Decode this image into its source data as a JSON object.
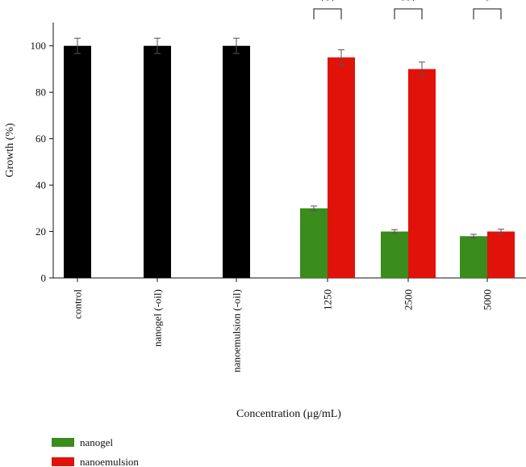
{
  "chart_data": {
    "type": "bar",
    "xlabel": "Concentration (μg/mL)",
    "ylabel": "Growth (%)",
    "ylim": [
      0,
      110
    ],
    "yticks": [
      0,
      20,
      40,
      60,
      80,
      100
    ],
    "categories": [
      "control",
      "nanogel (-oil)",
      "nanoemulsion (-oil)",
      "1250",
      "2500",
      "5000"
    ],
    "control_series": {
      "color": "#000000",
      "values": [
        100,
        100,
        100,
        null,
        null,
        null
      ],
      "errors": [
        3.3,
        3.3,
        3.3,
        null,
        null,
        null
      ]
    },
    "series": [
      {
        "name": "nanogel",
        "color": "#3a8c1c",
        "values": [
          null,
          null,
          null,
          30,
          20,
          18
        ],
        "errors": [
          null,
          null,
          null,
          1.0,
          0.8,
          0.8
        ]
      },
      {
        "name": "nanoemulsion",
        "color": "#e0120a",
        "values": [
          null,
          null,
          null,
          95,
          90,
          20
        ],
        "errors": [
          null,
          null,
          null,
          3.3,
          3.0,
          1.0
        ]
      }
    ],
    "significance": [
      {
        "category": "1250",
        "label": "***"
      },
      {
        "category": "2500",
        "label": "***"
      },
      {
        "category": "5000",
        "label": "*"
      }
    ],
    "grid": false,
    "legend_position": "bottom-left"
  }
}
